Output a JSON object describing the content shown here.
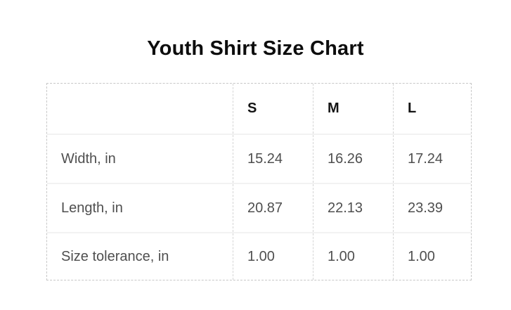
{
  "title": "Youth Shirt Size Chart",
  "table": {
    "columns": [
      "",
      "S",
      "M",
      "L"
    ],
    "rows": [
      {
        "label": "Width, in",
        "values": [
          "15.24",
          "16.26",
          "17.24"
        ]
      },
      {
        "label": "Length, in",
        "values": [
          "20.87",
          "22.13",
          "23.39"
        ]
      },
      {
        "label": "Size tolerance, in",
        "values": [
          "1.00",
          "1.00",
          "1.00"
        ]
      }
    ]
  },
  "colors": {
    "title_text": "#0d0d0d",
    "header_text": "#141414",
    "body_text": "#4f4f4f",
    "outer_border_dashed": "#c7c7c7",
    "column_border_dashed": "#d5d5d5",
    "row_separator": "#f2f2f2",
    "background": "#ffffff"
  }
}
